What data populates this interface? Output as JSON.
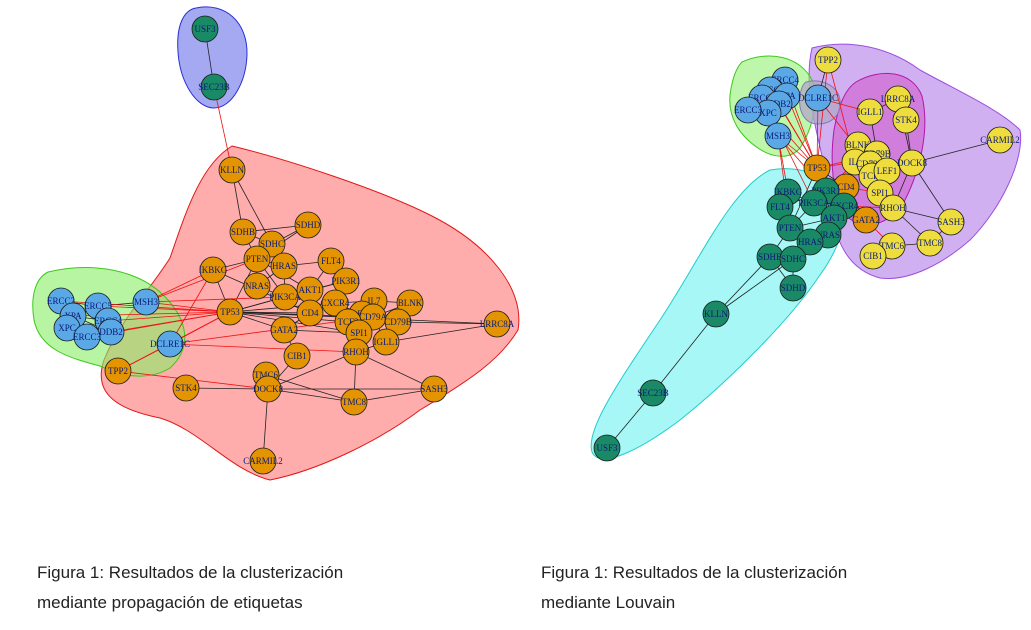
{
  "captions": {
    "left": [
      "Figura 1: Resultados de la clusterización",
      "mediante propagación de etiquetas"
    ],
    "right": [
      "Figura 1: Resultados de la clusterización",
      "mediante Louvain"
    ]
  },
  "colors": {
    "green_node": "#1a8a66",
    "orange_node": "#e39400",
    "blue_node": "#5aa9e6",
    "yellow_node": "#eedd3c",
    "edge": "#222222",
    "cross_edge": "#ee1111",
    "hull_blue_fill": "#5a62e8",
    "hull_red_fill": "#ff8080",
    "hull_green_fill": "#88ee66",
    "hull_cyan_fill": "#5ff0f0",
    "hull_purple_fill": "#b27be8",
    "hull_magenta_fill": "#d040c0",
    "hull_gray_fill": "#b0a8c8"
  },
  "graphs": [
    {
      "id": "label-propagation",
      "node_labels": [
        "USF3",
        "SEC23B",
        "KLLN",
        "SDHB",
        "SDHD",
        "SDHC",
        "PTEN",
        "HRAS",
        "FLT4",
        "IKBKG",
        "PIK3R1",
        "NRAS",
        "AKT1",
        "PIK3CA",
        "IL7",
        "BLNK",
        "CXCR4",
        "TP53",
        "CD4",
        "LEF1",
        "CD79A",
        "CD79B",
        "TCF3",
        "LRRC8A",
        "SPI1",
        "GATA2",
        "IGLL1",
        "RHOH",
        "CIB1",
        "TMC6",
        "STK4",
        "DOCK8",
        "SASH3",
        "TMC8",
        "CARMIL2",
        "TPP2",
        "DCLRE1C",
        "MSH3",
        "ERCC2",
        "XPA",
        "ERCC5",
        "ERCC4",
        "XPC",
        "DDB2",
        "ERCC3"
      ],
      "communities": [
        {
          "color": "green_node",
          "members": [
            "USF3",
            "SEC23B"
          ]
        },
        {
          "color": "orange_node",
          "members": [
            "KLLN",
            "SDHB",
            "SDHD",
            "SDHC",
            "PTEN",
            "HRAS",
            "FLT4",
            "IKBKG",
            "PIK3R1",
            "NRAS",
            "AKT1",
            "PIK3CA",
            "IL7",
            "BLNK",
            "CXCR4",
            "TP53",
            "CD4",
            "LEF1",
            "CD79A",
            "CD79B",
            "TCF3",
            "LRRC8A",
            "SPI1",
            "GATA2",
            "IGLL1",
            "RHOH",
            "CIB1",
            "TMC6",
            "STK4",
            "DOCK8",
            "SASH3",
            "TMC8",
            "CARMIL2",
            "TPP2"
          ]
        },
        {
          "color": "blue_node",
          "members": [
            "DCLRE1C",
            "MSH3",
            "ERCC2",
            "XPA",
            "ERCC5",
            "ERCC4",
            "XPC",
            "DDB2",
            "ERCC3"
          ]
        }
      ]
    },
    {
      "id": "louvain",
      "node_labels": [
        "TPP2",
        "ERCC4",
        "ERCC2",
        "XPA",
        "ERCC5",
        "DDB2",
        "XPC",
        "DCLRE1C",
        "ERCC3",
        "MSH3",
        "IGLL1",
        "LRRC8A",
        "STK4",
        "CARMIL2",
        "BLNK",
        "CD79B",
        "TP53",
        "IL7",
        "CD79A",
        "TCF3",
        "LEF1",
        "DOCK8",
        "CD4",
        "SPI1",
        "RHOH",
        "SASH3",
        "TMC8",
        "TMC6",
        "CIB1",
        "IKBKG",
        "PIK3R1",
        "FLT4",
        "CXCR4",
        "PIK3CA",
        "AKT1",
        "PTEN",
        "NRAS",
        "HRAS",
        "GATA2",
        "SDHB",
        "SDHC",
        "SDHD",
        "KLLN",
        "SEC23B",
        "USF3"
      ],
      "communities": [
        {
          "color": "blue_node",
          "members": [
            "ERCC4",
            "ERCC2",
            "XPA",
            "ERCC5",
            "DDB2",
            "XPC",
            "DCLRE1C",
            "ERCC3",
            "MSH3"
          ]
        },
        {
          "color": "yellow_node",
          "members": [
            "TPP2",
            "IGLL1",
            "LRRC8A",
            "STK4",
            "CARMIL2",
            "BLNK",
            "CD79B",
            "IL7",
            "CD79A",
            "TCF3",
            "LEF1",
            "DOCK8",
            "SPI1",
            "RHOH",
            "SASH3",
            "TMC8",
            "TMC6",
            "CIB1"
          ]
        },
        {
          "color": "orange_node",
          "members": [
            "TP53",
            "CD4",
            "GATA2"
          ]
        },
        {
          "color": "green_node",
          "members": [
            "IKBKG",
            "PIK3R1",
            "FLT4",
            "CXCR4",
            "PIK3CA",
            "AKT1",
            "PTEN",
            "NRAS",
            "HRAS",
            "SDHB",
            "SDHC",
            "SDHD",
            "KLLN",
            "SEC23B",
            "USF3"
          ]
        }
      ]
    }
  ]
}
